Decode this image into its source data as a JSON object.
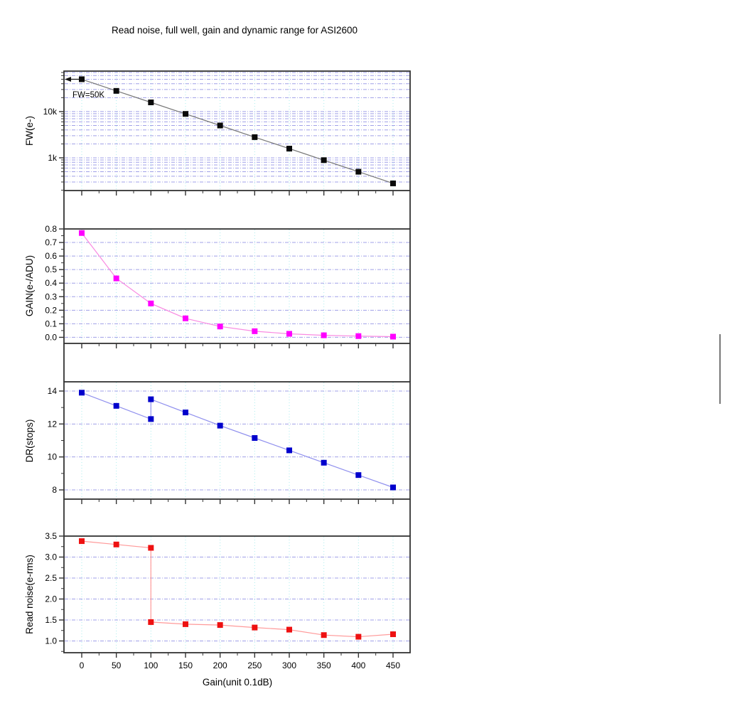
{
  "title": "Read noise, full well, gain and dynamic range for ASI2600",
  "annotation": {
    "label": "FW=50K"
  },
  "x_axis": {
    "label": "Gain(unit 0.1dB)",
    "ticks": [
      0,
      50,
      100,
      150,
      200,
      250,
      300,
      350,
      400,
      450
    ],
    "tick_labels": [
      "0",
      "50",
      "100",
      "150",
      "200",
      "250",
      "300",
      "350",
      "400",
      "450"
    ],
    "minor_ticks": [
      25,
      75,
      125,
      175,
      225,
      275,
      325,
      375,
      425
    ],
    "range": [
      -25,
      475
    ]
  },
  "colors": {
    "grid_vertical": "#aaeeee",
    "grid_horizontal": "#a0a0e8",
    "frame": "#333333",
    "tick": "#333333",
    "stray_line": "#4a4a4a"
  },
  "chart_data": [
    {
      "type": "line",
      "name": "full-well",
      "ylabel": "FW(e-)",
      "yscale": "log",
      "x": [
        0,
        50,
        100,
        150,
        200,
        250,
        300,
        350,
        400,
        450
      ],
      "values": [
        50000,
        28000,
        15800,
        8900,
        5000,
        2800,
        1580,
        890,
        500,
        280
      ],
      "ylim": [
        196,
        75000
      ],
      "yticks": [
        {
          "v": 10000,
          "label": "10k"
        },
        {
          "v": 1000,
          "label": "1k"
        }
      ],
      "yminor": [
        200,
        300,
        400,
        500,
        600,
        700,
        800,
        900,
        2000,
        3000,
        4000,
        5000,
        6000,
        7000,
        8000,
        9000,
        20000,
        30000,
        40000,
        50000,
        60000,
        70000
      ],
      "ygrid": [
        200,
        300,
        400,
        500,
        600,
        700,
        800,
        900,
        1000,
        2000,
        3000,
        4000,
        5000,
        6000,
        7000,
        8000,
        9000,
        10000,
        20000,
        30000,
        40000,
        50000,
        60000,
        70000
      ],
      "marker_color": "#0a0a0a",
      "line_color": "#777777",
      "annotation_value": 50000
    },
    {
      "type": "line",
      "name": "gain",
      "ylabel": "GAIN(e-/ADU)",
      "yscale": "linear",
      "x": [
        0,
        50,
        100,
        150,
        200,
        250,
        300,
        350,
        400,
        450
      ],
      "values": [
        0.77,
        0.435,
        0.25,
        0.14,
        0.08,
        0.045,
        0.026,
        0.015,
        0.009,
        0.005
      ],
      "ylim": [
        -0.045,
        0.8
      ],
      "yticks": [
        {
          "v": 0.8,
          "label": "0.8"
        },
        {
          "v": 0.7,
          "label": "0.7"
        },
        {
          "v": 0.6,
          "label": "0.6"
        },
        {
          "v": 0.5,
          "label": "0.5"
        },
        {
          "v": 0.4,
          "label": "0.4"
        },
        {
          "v": 0.3,
          "label": "0.3"
        },
        {
          "v": 0.2,
          "label": "0.2"
        },
        {
          "v": 0.1,
          "label": "0.1"
        },
        {
          "v": 0.0,
          "label": "0.0"
        }
      ],
      "yminor": [
        0.05,
        0.15,
        0.25,
        0.35,
        0.45,
        0.55,
        0.65,
        0.75
      ],
      "ygrid": [
        0.0,
        0.1,
        0.2,
        0.3,
        0.4,
        0.5,
        0.6,
        0.7
      ],
      "marker_color": "#ff00ff",
      "line_color": "#f98ae2"
    },
    {
      "type": "line",
      "name": "dynamic-range",
      "ylabel": "DR(stops)",
      "yscale": "linear",
      "x": [
        0,
        50,
        100,
        100,
        150,
        200,
        250,
        300,
        350,
        400,
        450
      ],
      "values": [
        13.9,
        13.1,
        12.3,
        13.5,
        12.7,
        11.9,
        11.15,
        10.4,
        9.65,
        8.9,
        8.15
      ],
      "ylim": [
        7.44,
        14.56
      ],
      "yticks": [
        {
          "v": 14,
          "label": "14"
        },
        {
          "v": 12,
          "label": "12"
        },
        {
          "v": 10,
          "label": "10"
        },
        {
          "v": 8,
          "label": "8"
        }
      ],
      "yminor": [
        9,
        11,
        13
      ],
      "ygrid": [
        8,
        10,
        12,
        14
      ],
      "marker_color": "#0000cc",
      "line_color": "#9090ee"
    },
    {
      "type": "line",
      "name": "read-noise",
      "ylabel": "Read noise(e-rms)",
      "yscale": "linear",
      "x": [
        0,
        50,
        100,
        100,
        150,
        200,
        250,
        300,
        350,
        400,
        450
      ],
      "values": [
        3.38,
        3.3,
        3.22,
        1.45,
        1.4,
        1.38,
        1.32,
        1.27,
        1.14,
        1.1,
        1.16
      ],
      "ylim": [
        0.72,
        3.5
      ],
      "yticks": [
        {
          "v": 3.5,
          "label": "3.5"
        },
        {
          "v": 3.0,
          "label": "3.0"
        },
        {
          "v": 2.5,
          "label": "2.5"
        },
        {
          "v": 2.0,
          "label": "2.0"
        },
        {
          "v": 1.5,
          "label": "1.5"
        },
        {
          "v": 1.0,
          "label": "1.0"
        }
      ],
      "yminor": [
        0.75,
        1.25,
        1.75,
        2.25,
        2.75,
        3.25
      ],
      "ygrid": [
        1.0,
        1.5,
        2.0,
        2.5,
        3.0
      ],
      "marker_color": "#ee1111",
      "line_color": "#ff9a9a"
    }
  ]
}
